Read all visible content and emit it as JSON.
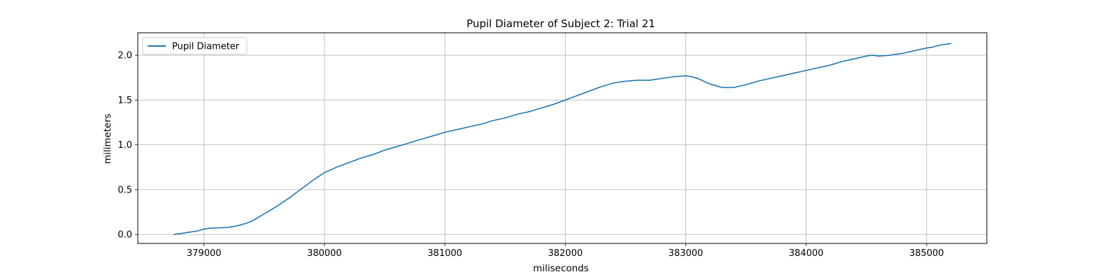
{
  "chart_data": {
    "type": "line",
    "title": "Pupil Diameter of Subject 2: Trial 21",
    "xlabel": "miliseconds",
    "ylabel": "milimeters",
    "xlim": [
      378450,
      385500
    ],
    "ylim": [
      -0.1,
      2.25
    ],
    "xticks": [
      379000,
      380000,
      381000,
      382000,
      383000,
      384000,
      385000
    ],
    "yticks": [
      0.0,
      0.5,
      1.0,
      1.5,
      2.0
    ],
    "ytick_labels": [
      "0.0",
      "0.5",
      "1.0",
      "1.5",
      "2.0"
    ],
    "grid": true,
    "legend_position": "top-left",
    "color": "#1f77b4",
    "series": [
      {
        "name": "Pupil Diameter",
        "x": [
          378750,
          378800,
          378900,
          378950,
          379000,
          379050,
          379150,
          379200,
          379250,
          379300,
          379350,
          379400,
          379500,
          379600,
          379700,
          379800,
          379900,
          380000,
          380100,
          380200,
          380300,
          380400,
          380500,
          380600,
          380700,
          380800,
          380900,
          381000,
          381100,
          381200,
          381300,
          381400,
          381500,
          381600,
          381700,
          381800,
          381900,
          382000,
          382100,
          382200,
          382300,
          382400,
          382500,
          382600,
          382700,
          382800,
          382900,
          383000,
          383050,
          383100,
          383200,
          383250,
          383300,
          383400,
          383500,
          383600,
          383700,
          383800,
          383900,
          384000,
          384100,
          384200,
          384300,
          384400,
          384500,
          384550,
          384600,
          384700,
          384800,
          384900,
          385000,
          385050,
          385100,
          385200
        ],
        "y": [
          0.0,
          0.01,
          0.03,
          0.04,
          0.06,
          0.07,
          0.075,
          0.078,
          0.09,
          0.105,
          0.125,
          0.15,
          0.23,
          0.31,
          0.4,
          0.5,
          0.6,
          0.69,
          0.75,
          0.8,
          0.85,
          0.89,
          0.94,
          0.98,
          1.02,
          1.06,
          1.1,
          1.14,
          1.17,
          1.2,
          1.23,
          1.27,
          1.3,
          1.34,
          1.37,
          1.41,
          1.45,
          1.5,
          1.55,
          1.6,
          1.65,
          1.69,
          1.71,
          1.72,
          1.72,
          1.74,
          1.76,
          1.77,
          1.76,
          1.74,
          1.68,
          1.66,
          1.64,
          1.64,
          1.67,
          1.71,
          1.74,
          1.77,
          1.8,
          1.83,
          1.86,
          1.89,
          1.93,
          1.96,
          1.99,
          2.0,
          1.99,
          2.0,
          2.02,
          2.05,
          2.08,
          2.09,
          2.11,
          2.13
        ]
      }
    ]
  }
}
